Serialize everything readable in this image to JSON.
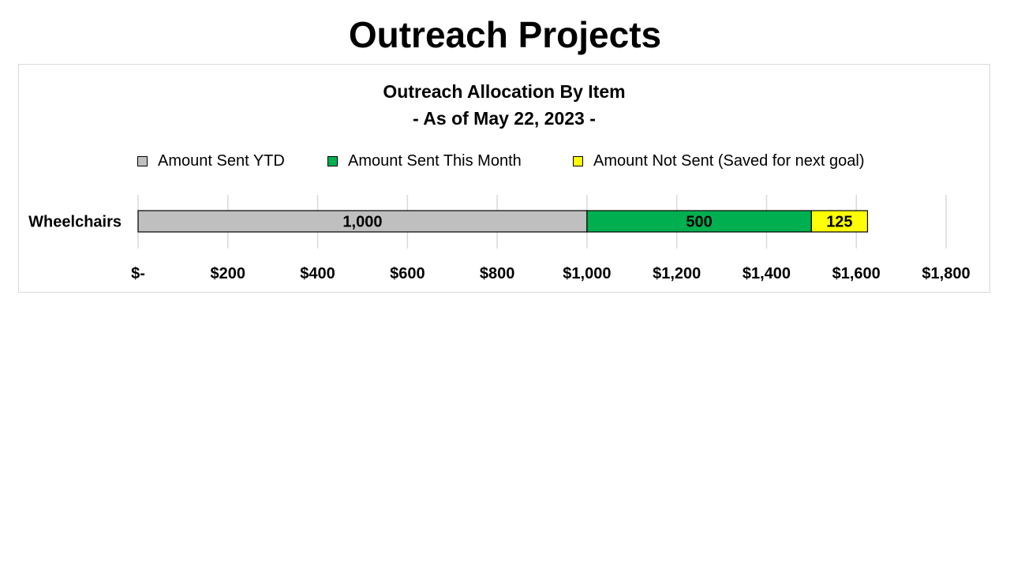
{
  "page": {
    "title": "Outreach Projects"
  },
  "chart_data": {
    "type": "bar",
    "orientation": "horizontal",
    "stacked": true,
    "title": "Outreach Allocation By Item",
    "subtitle": "- As of May 22, 2023 -",
    "categories": [
      "Wheelchairs"
    ],
    "series": [
      {
        "name": "Amount Sent YTD",
        "values": [
          1000
        ],
        "color": "#bfbfbf",
        "labels": [
          "1,000"
        ]
      },
      {
        "name": "Amount Sent This Month",
        "values": [
          500
        ],
        "color": "#00b050",
        "labels": [
          "500"
        ]
      },
      {
        "name": "Amount Not Sent (Saved for next goal)",
        "values": [
          125
        ],
        "color": "#ffff00",
        "labels": [
          "125"
        ]
      }
    ],
    "xlim": [
      0,
      1800
    ],
    "x_ticks": [
      0,
      200,
      400,
      600,
      800,
      1000,
      1200,
      1400,
      1600,
      1800
    ],
    "x_tick_labels": [
      "$-",
      "$200",
      "$400",
      "$600",
      "$800",
      "$1,000",
      "$1,200",
      "$1,400",
      "$1,600",
      "$1,800"
    ],
    "grid": true,
    "legend_position": "top"
  }
}
